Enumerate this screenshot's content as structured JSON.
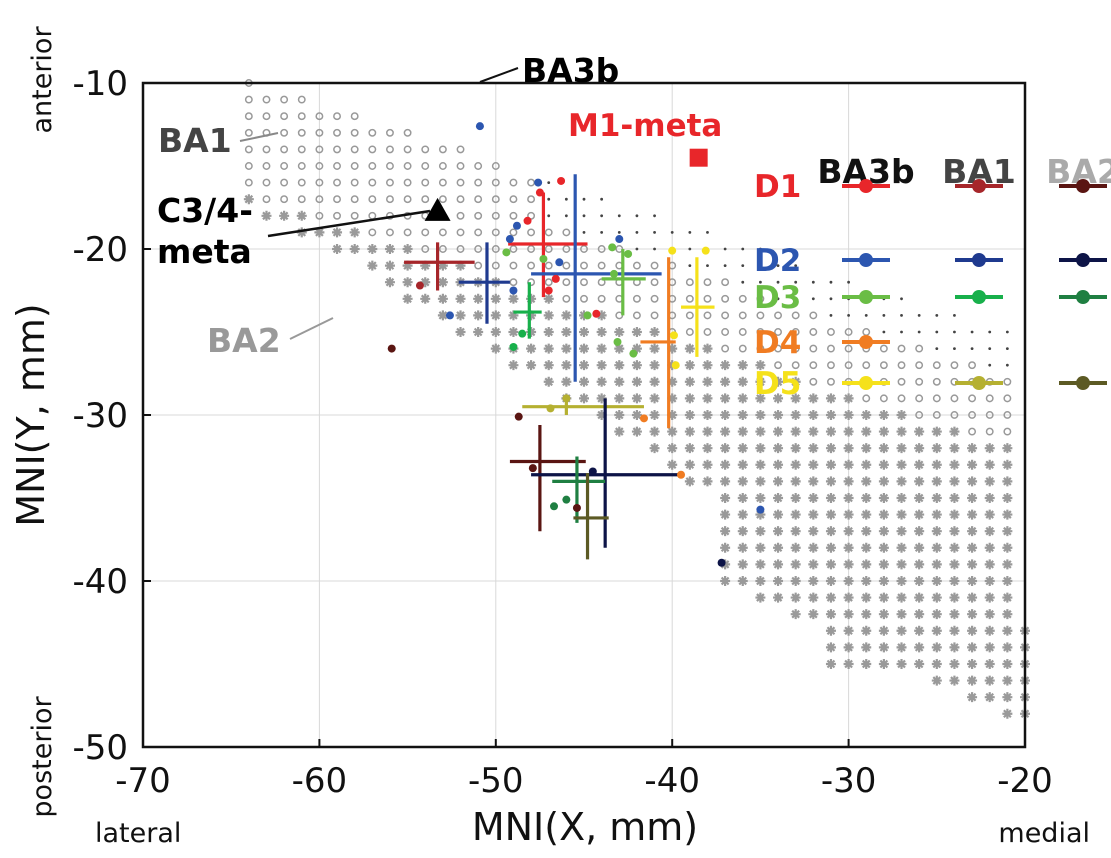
{
  "chart_data": {
    "type": "scatter",
    "xlabel": "MNI(X, mm)",
    "ylabel": "MNI(Y, mm)",
    "xlim": [
      -70,
      -20
    ],
    "ylim": [
      -50,
      -10
    ],
    "xticks": [
      "-70",
      "-60",
      "-50",
      "-40",
      "-30",
      "-20"
    ],
    "yticks": [
      "-10",
      "-20",
      "-30",
      "-40",
      "-50"
    ],
    "grid": true,
    "direction_labels": {
      "lateral": "lateral",
      "medial": "medial",
      "anterior": "anterior",
      "posterior": "posterior"
    },
    "region_labels": {
      "ba3b": "BA3b",
      "ba1": "BA1",
      "ba2": "BA2"
    },
    "markers": {
      "c34": {
        "label_line1": "C3/4-",
        "label_line2": "meta",
        "x": -53.3,
        "y": -17.7,
        "color": "#000000"
      },
      "m1": {
        "label": "M1-meta",
        "x": -38.5,
        "y": -14.5,
        "color": "#e8262a"
      }
    },
    "legend": {
      "placement": "top-right",
      "columns": [
        "BA3b",
        "BA1",
        "BA2"
      ],
      "rows": [
        {
          "label": "D1",
          "colors": [
            "#e8262a",
            "#a6262a",
            "#5a1512"
          ]
        },
        {
          "label": "D2",
          "colors": [
            "#2c56b0",
            "#1f3a8f",
            "#0d1447"
          ]
        },
        {
          "label": "D3",
          "colors": [
            "#6abd45",
            "#18b04b",
            "#1f7f42"
          ]
        },
        {
          "label": "D4",
          "colors": [
            "#f07c22",
            "",
            ""
          ]
        },
        {
          "label": "D5",
          "colors": [
            "#f5e11a",
            "#b5b031",
            "#5c5a24"
          ]
        }
      ]
    },
    "crosshairs": [
      {
        "region": "BA3b",
        "digit": "D1",
        "color": "#e8262a",
        "x": -47.3,
        "y": -19.7,
        "x_range": [
          -49.3,
          -44.8
        ],
        "y_range": [
          -16.6,
          -22.9
        ]
      },
      {
        "region": "BA3b",
        "digit": "D2",
        "color": "#2c56b0",
        "x": -45.5,
        "y": -21.5,
        "x_range": [
          -48.0,
          -40.6
        ],
        "y_range": [
          -15.5,
          -28.0
        ]
      },
      {
        "region": "BA3b",
        "digit": "D3",
        "color": "#6abd45",
        "x": -42.8,
        "y": -21.8,
        "x_range": [
          -44.0,
          -41.5
        ],
        "y_range": [
          -20.0,
          -24.0
        ]
      },
      {
        "region": "BA3b",
        "digit": "D4",
        "color": "#f07c22",
        "x": -40.2,
        "y": -25.6,
        "x_range": [
          -41.8,
          -39.8
        ],
        "y_range": [
          -20.5,
          -30.8
        ]
      },
      {
        "region": "BA3b",
        "digit": "D5",
        "color": "#f5e11a",
        "x": -38.6,
        "y": -23.5,
        "x_range": [
          -39.5,
          -37.6
        ],
        "y_range": [
          -20.5,
          -26.5
        ]
      },
      {
        "region": "BA1",
        "digit": "D1",
        "color": "#a6262a",
        "x": -53.3,
        "y": -20.8,
        "x_range": [
          -55.2,
          -51.2
        ],
        "y_range": [
          -19.6,
          -22.5
        ]
      },
      {
        "region": "BA1",
        "digit": "D2",
        "color": "#1f3a8f",
        "x": -50.5,
        "y": -22.0,
        "x_range": [
          -52.1,
          -49.2
        ],
        "y_range": [
          -19.6,
          -24.5
        ]
      },
      {
        "region": "BA1",
        "digit": "D3",
        "color": "#18b04b",
        "x": -48.1,
        "y": -23.8,
        "x_range": [
          -49.0,
          -47.4
        ],
        "y_range": [
          -22.0,
          -25.4
        ]
      },
      {
        "region": "BA1",
        "digit": "D5",
        "color": "#b5b031",
        "x": -46.0,
        "y": -29.5,
        "x_range": [
          -48.5,
          -41.6
        ],
        "y_range": [
          -29.0,
          -30.0
        ]
      },
      {
        "region": "BA2",
        "digit": "D1",
        "color": "#5a1512",
        "x": -47.5,
        "y": -32.8,
        "x_range": [
          -49.2,
          -44.9
        ],
        "y_range": [
          -30.6,
          -37.0
        ]
      },
      {
        "region": "BA2",
        "digit": "D2",
        "color": "#0d1447",
        "x": -43.8,
        "y": -33.6,
        "x_range": [
          -48.0,
          -39.5
        ],
        "y_range": [
          -29.0,
          -38.0
        ]
      },
      {
        "region": "BA2",
        "digit": "D3",
        "color": "#1f7f42",
        "x": -45.4,
        "y": -34.0,
        "x_range": [
          -46.8,
          -43.8
        ],
        "y_range": [
          -32.5,
          -36.5
        ]
      },
      {
        "region": "BA2",
        "digit": "D5",
        "color": "#5c5a24",
        "x": -44.8,
        "y": -36.2,
        "x_range": [
          -45.6,
          -43.6
        ],
        "y_range": [
          -33.5,
          -38.7
        ]
      }
    ],
    "points": [
      {
        "x": -47.5,
        "y": -16.6,
        "color": "#e8262a"
      },
      {
        "x": -48.2,
        "y": -18.3,
        "color": "#e8262a"
      },
      {
        "x": -46.3,
        "y": -15.9,
        "color": "#e8262a"
      },
      {
        "x": -44.3,
        "y": -23.9,
        "color": "#e8262a"
      },
      {
        "x": -47.0,
        "y": -22.5,
        "color": "#e8262a"
      },
      {
        "x": -46.6,
        "y": -21.8,
        "color": "#e8262a"
      },
      {
        "x": -54.3,
        "y": -22.2,
        "color": "#a6262a"
      },
      {
        "x": -55.9,
        "y": -26.0,
        "color": "#5a1512"
      },
      {
        "x": -47.9,
        "y": -33.2,
        "color": "#5a1512"
      },
      {
        "x": -48.7,
        "y": -30.1,
        "color": "#5a1512"
      },
      {
        "x": -45.4,
        "y": -35.6,
        "color": "#5a1512"
      },
      {
        "x": -50.9,
        "y": -12.6,
        "color": "#2c56b0"
      },
      {
        "x": -47.6,
        "y": -16.0,
        "color": "#2c56b0"
      },
      {
        "x": -48.8,
        "y": -18.6,
        "color": "#2c56b0"
      },
      {
        "x": -49.2,
        "y": -19.4,
        "color": "#2c56b0"
      },
      {
        "x": -49.0,
        "y": -22.5,
        "color": "#2c56b0"
      },
      {
        "x": -52.6,
        "y": -24.0,
        "color": "#2c56b0"
      },
      {
        "x": -46.4,
        "y": -20.8,
        "color": "#2c56b0"
      },
      {
        "x": -35.0,
        "y": -35.7,
        "color": "#2c56b0"
      },
      {
        "x": -43.0,
        "y": -19.4,
        "color": "#2c56b0"
      },
      {
        "x": -37.2,
        "y": -38.9,
        "color": "#0d1447"
      },
      {
        "x": -44.5,
        "y": -33.4,
        "color": "#0d1447"
      },
      {
        "x": -49.4,
        "y": -20.2,
        "color": "#6abd45"
      },
      {
        "x": -43.4,
        "y": -19.9,
        "color": "#6abd45"
      },
      {
        "x": -47.3,
        "y": -20.6,
        "color": "#6abd45"
      },
      {
        "x": -42.5,
        "y": -20.3,
        "color": "#6abd45"
      },
      {
        "x": -43.3,
        "y": -21.5,
        "color": "#6abd45"
      },
      {
        "x": -44.8,
        "y": -24.0,
        "color": "#6abd45"
      },
      {
        "x": -43.1,
        "y": -25.6,
        "color": "#6abd45"
      },
      {
        "x": -42.2,
        "y": -26.3,
        "color": "#6abd45"
      },
      {
        "x": -48.5,
        "y": -25.1,
        "color": "#18b04b"
      },
      {
        "x": -49.0,
        "y": -25.9,
        "color": "#18b04b"
      },
      {
        "x": -46.0,
        "y": -35.1,
        "color": "#1f7f42"
      },
      {
        "x": -46.7,
        "y": -35.5,
        "color": "#1f7f42"
      },
      {
        "x": -41.6,
        "y": -30.2,
        "color": "#f07c22"
      },
      {
        "x": -39.5,
        "y": -33.6,
        "color": "#f07c22"
      },
      {
        "x": -40.0,
        "y": -20.1,
        "color": "#f5e11a"
      },
      {
        "x": -38.1,
        "y": -20.1,
        "color": "#f5e11a"
      },
      {
        "x": -39.9,
        "y": -25.2,
        "color": "#f5e11a"
      },
      {
        "x": -39.8,
        "y": -27.0,
        "color": "#f5e11a"
      },
      {
        "x": -46.9,
        "y": -29.6,
        "color": "#b5b031"
      },
      {
        "x": -46.0,
        "y": -29.0,
        "color": "#b5b031"
      }
    ]
  }
}
